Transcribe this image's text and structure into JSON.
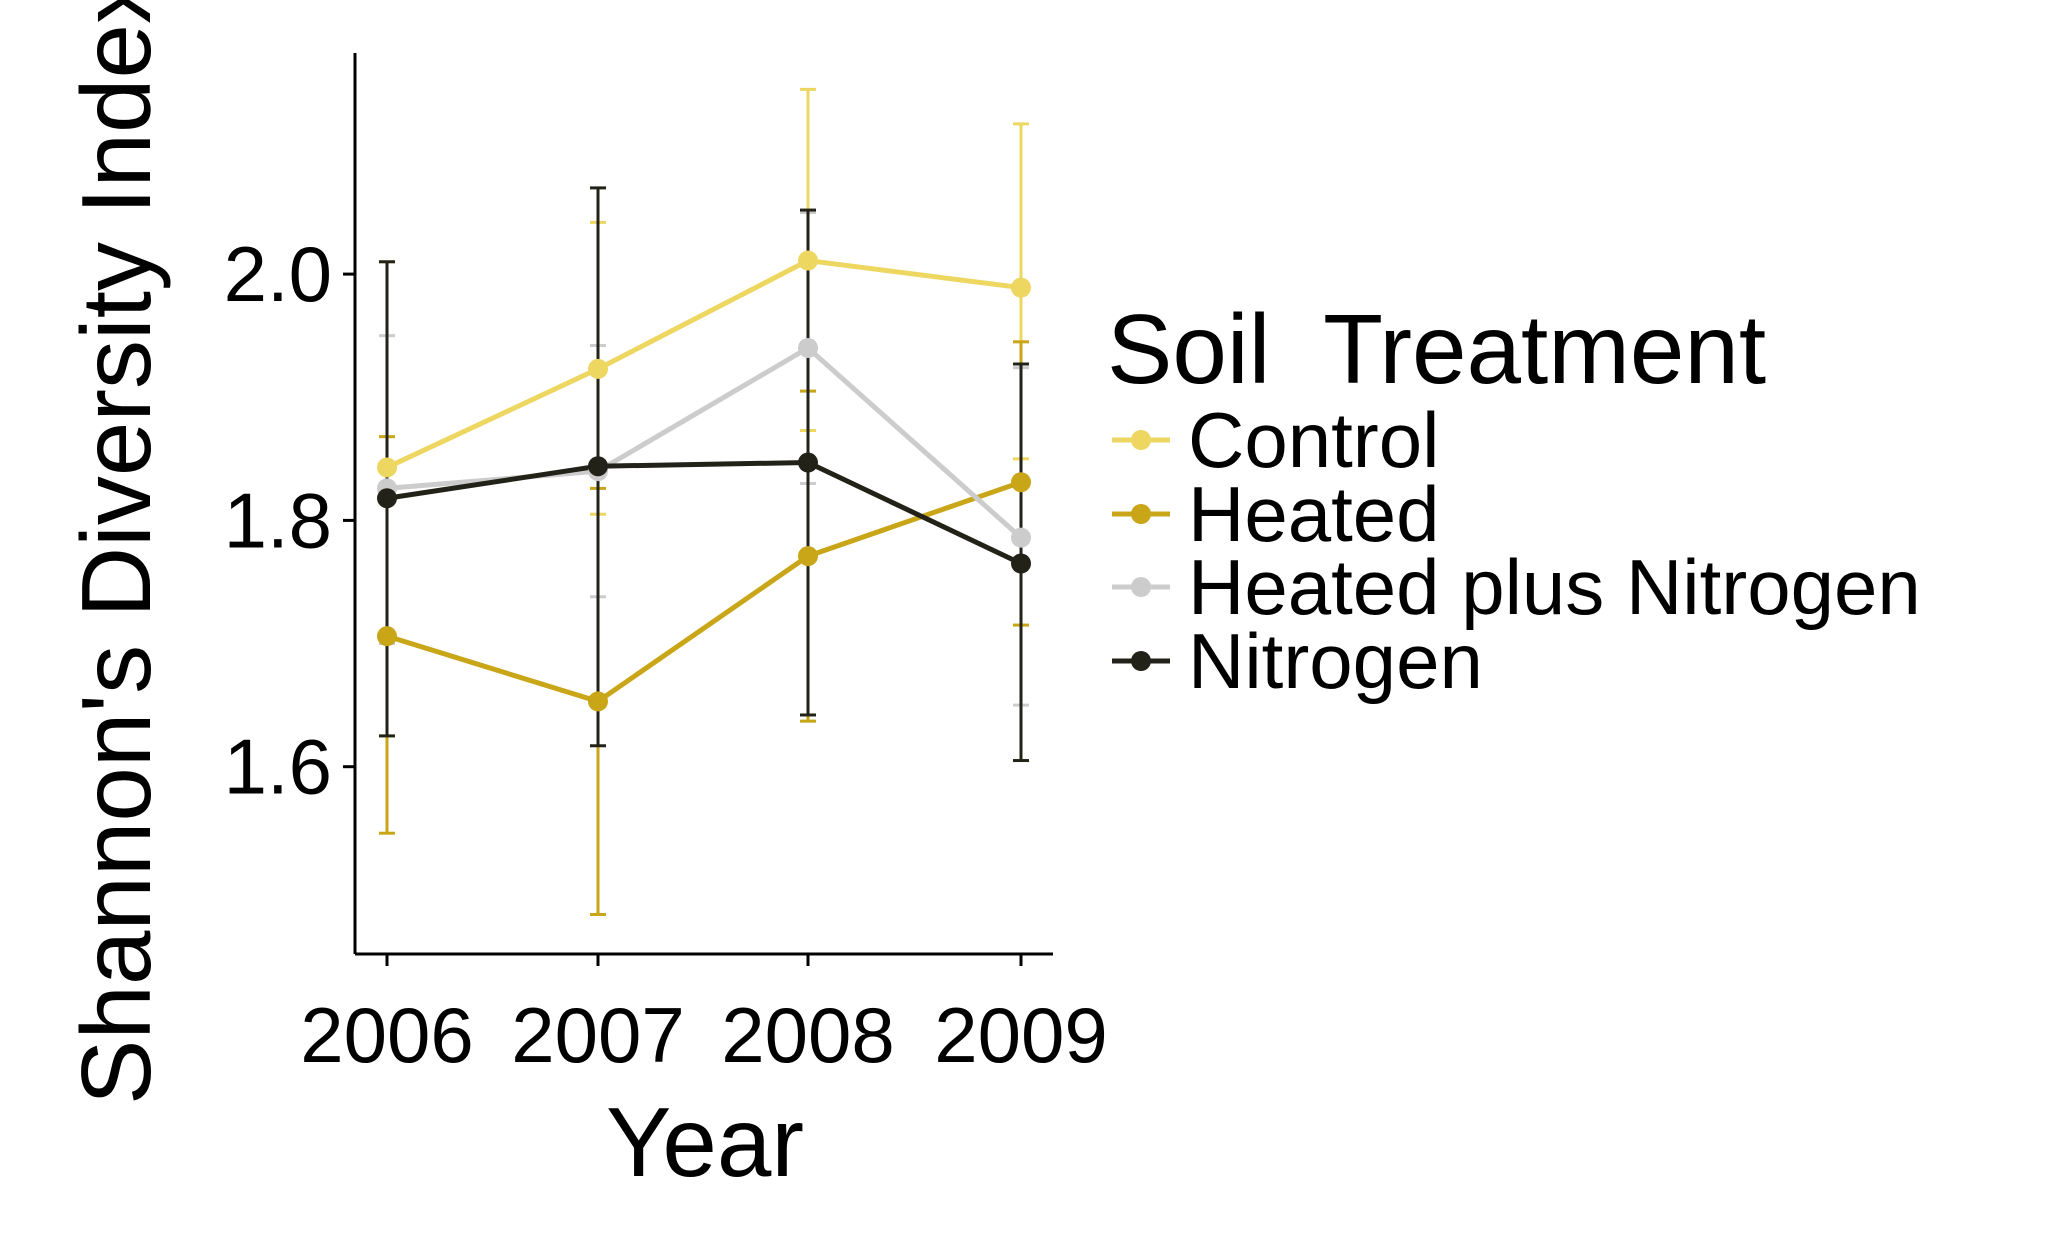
{
  "chart_data": {
    "type": "line",
    "xlabel": "Year",
    "ylabel": "Shannon's Diversity Index",
    "categories": [
      "2006",
      "2007",
      "2008",
      "2009"
    ],
    "yticks": [
      "1.6",
      "1.8",
      "2.0"
    ],
    "ylim": [
      1.45,
      2.18
    ],
    "grid": false,
    "legend": {
      "title": "Soil  Treatment",
      "position": "right"
    },
    "series": [
      {
        "name": "Control",
        "color": "#EDD760",
        "values": [
          1.843,
          1.923,
          2.011,
          1.989
        ],
        "err_low": [
          1.625,
          1.805,
          1.873,
          1.85
        ],
        "err_high": [
          2.01,
          2.042,
          2.15,
          2.122
        ]
      },
      {
        "name": "Heated",
        "color": "#C9A518",
        "values": [
          1.706,
          1.653,
          1.771,
          1.831
        ],
        "err_low": [
          1.546,
          1.48,
          1.637,
          1.715
        ],
        "err_high": [
          1.868,
          1.826,
          1.905,
          1.945
        ]
      },
      {
        "name": "Heated plus Nitrogen",
        "color": "#CCCCCC",
        "values": [
          1.826,
          1.84,
          1.94,
          1.786
        ],
        "err_low": [
          1.7,
          1.738,
          1.83,
          1.65
        ],
        "err_high": [
          1.95,
          1.942,
          2.05,
          1.924
        ]
      },
      {
        "name": "Nitrogen",
        "color": "#222218",
        "values": [
          1.818,
          1.844,
          1.847,
          1.765
        ],
        "err_low": [
          1.625,
          1.617,
          1.642,
          1.605
        ],
        "err_high": [
          2.01,
          2.07,
          2.052,
          1.927
        ]
      }
    ]
  }
}
